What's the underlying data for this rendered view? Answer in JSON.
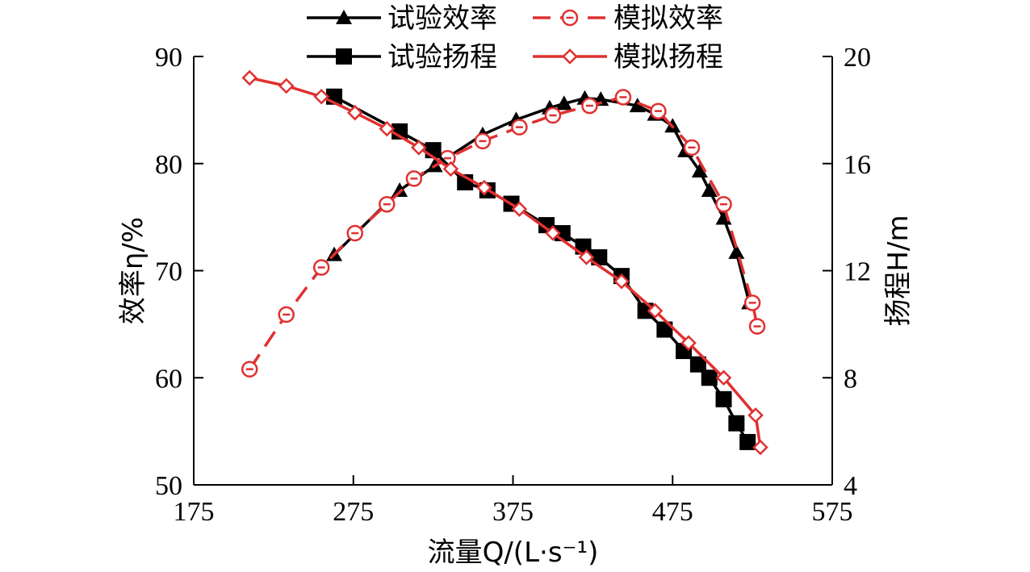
{
  "chart_data": {
    "type": "line",
    "xlabel": "流量Q/(L·s⁻¹)",
    "ylabel_left": "效率η/%",
    "ylabel_right": "扬程H/m",
    "xlim": [
      175,
      575
    ],
    "ylim_left": [
      50,
      90
    ],
    "ylim_right": [
      4,
      20
    ],
    "x_ticks": [
      "175",
      "275",
      "375",
      "475",
      "575"
    ],
    "y_ticks_left": [
      "50",
      "60",
      "70",
      "80",
      "90"
    ],
    "y_ticks_right": [
      "4",
      "8",
      "12",
      "16",
      "20"
    ],
    "grid": false,
    "legend_position": "top",
    "series": [
      {
        "name": "试验效率",
        "axis": "left",
        "color": "#000000",
        "marker": "triangle",
        "line": "solid",
        "points": [
          [
            263,
            71.5
          ],
          [
            304,
            77.5
          ],
          [
            326,
            79.8
          ],
          [
            356,
            82.7
          ],
          [
            377,
            84.1
          ],
          [
            398,
            85.2
          ],
          [
            407,
            85.6
          ],
          [
            420,
            86.1
          ],
          [
            430,
            86.0
          ],
          [
            453,
            85.4
          ],
          [
            464,
            84.6
          ],
          [
            475,
            83.5
          ],
          [
            483,
            81.2
          ],
          [
            492,
            79.3
          ],
          [
            498,
            77.5
          ],
          [
            507,
            74.9
          ],
          [
            515,
            71.7
          ],
          [
            523,
            67.0
          ]
        ]
      },
      {
        "name": "模拟效率",
        "axis": "left",
        "color": "#e03030",
        "marker": "circle",
        "line": "dashed",
        "points": [
          [
            210,
            60.8
          ],
          [
            233,
            65.9
          ],
          [
            255,
            70.3
          ],
          [
            276,
            73.5
          ],
          [
            296,
            76.2
          ],
          [
            313,
            78.6
          ],
          [
            334,
            80.5
          ],
          [
            356,
            82.1
          ],
          [
            379,
            83.4
          ],
          [
            400,
            84.5
          ],
          [
            423,
            85.4
          ],
          [
            444,
            86.2
          ],
          [
            466,
            84.9
          ],
          [
            487,
            81.5
          ],
          [
            507,
            76.2
          ],
          [
            525,
            67.0
          ],
          [
            528,
            64.8
          ]
        ]
      },
      {
        "name": "试验扬程",
        "axis": "right",
        "color": "#000000",
        "marker": "square",
        "line": "solid",
        "points": [
          [
            263,
            18.5
          ],
          [
            304,
            17.2
          ],
          [
            325,
            16.5
          ],
          [
            345,
            15.3
          ],
          [
            359,
            15.0
          ],
          [
            374,
            14.5
          ],
          [
            396,
            13.7
          ],
          [
            406,
            13.4
          ],
          [
            419,
            12.9
          ],
          [
            429,
            12.5
          ],
          [
            443,
            11.8
          ],
          [
            458,
            10.5
          ],
          [
            470,
            9.8
          ],
          [
            482,
            9.0
          ],
          [
            491,
            8.5
          ],
          [
            498,
            8.0
          ],
          [
            507,
            7.2
          ],
          [
            515,
            6.3
          ],
          [
            522,
            5.6
          ]
        ]
      },
      {
        "name": "模拟扬程",
        "axis": "right",
        "color": "#e03030",
        "marker": "diamond",
        "line": "solid",
        "points": [
          [
            210,
            19.2
          ],
          [
            233,
            18.9
          ],
          [
            255,
            18.5
          ],
          [
            276,
            17.9
          ],
          [
            296,
            17.3
          ],
          [
            316,
            16.6
          ],
          [
            336,
            15.8
          ],
          [
            357,
            15.1
          ],
          [
            379,
            14.3
          ],
          [
            400,
            13.4
          ],
          [
            421,
            12.5
          ],
          [
            443,
            11.6
          ],
          [
            464,
            10.5
          ],
          [
            485,
            9.3
          ],
          [
            507,
            8.0
          ],
          [
            527,
            6.6
          ],
          [
            530,
            5.4
          ]
        ]
      }
    ]
  }
}
